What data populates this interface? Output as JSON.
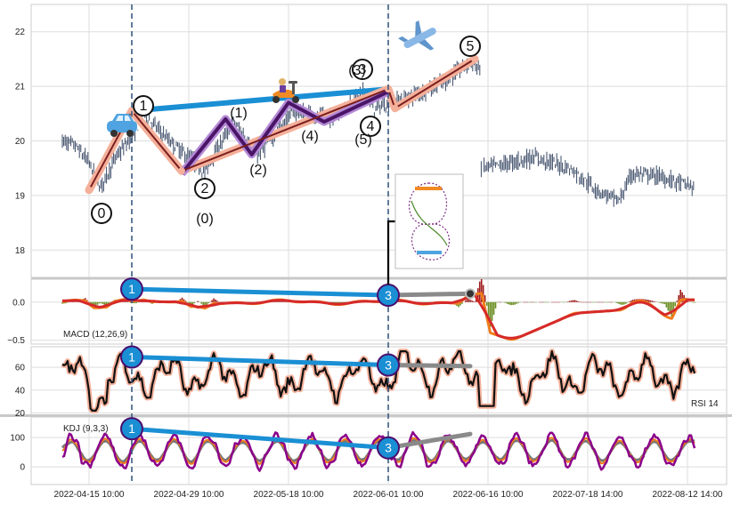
{
  "chart_data": {
    "type": "line",
    "x_tick_labels": [
      "2022-04-15 10:00",
      "2022-04-29 10:00",
      "2022-05-18 10:00",
      "2022-06-01 10:00",
      "2022-06-16 10:00",
      "2022-07-18 14:00",
      "2022-08-12 14:00"
    ],
    "panels": [
      {
        "name": "price",
        "series_type": "candlestick",
        "y_ticks": [
          18,
          19,
          20,
          21,
          22
        ],
        "ylim": [
          17.5,
          22.5
        ],
        "wave_labels": [
          "0",
          "1",
          "2",
          "3",
          "4",
          "5"
        ],
        "sub_wave_labels": [
          "(0)",
          "(1)",
          "(2)",
          "(3)",
          "(4)",
          "(5)"
        ],
        "impulse_path": [
          {
            "label": "0",
            "x": "2022-04-15 10:00",
            "y": 19.1
          },
          {
            "label": "1",
            "x": "2022-04-21 10:00",
            "y": 20.55
          },
          {
            "label": "2",
            "x": "2022-04-28 10:00",
            "y": 19.45
          },
          {
            "label": "3",
            "x": "2022-06-01 10:00",
            "y": 20.95
          },
          {
            "label": "4",
            "x": "2022-06-02 10:00",
            "y": 20.6
          },
          {
            "label": "5",
            "x": "2022-06-14 10:00",
            "y": 21.5
          }
        ],
        "sub_wave_path": [
          {
            "label": "(0)",
            "x": "2022-04-28 10:00",
            "y": 19.4
          },
          {
            "label": "(1)",
            "x": "2022-05-06 10:00",
            "y": 20.4
          },
          {
            "label": "(2)",
            "x": "2022-05-11 10:00",
            "y": 19.75
          },
          {
            "label": "(3)",
            "x": "2022-05-18 10:00",
            "y": 20.7
          },
          {
            "label": "(4)",
            "x": "2022-05-23 10:00",
            "y": 20.35
          },
          {
            "label": "(5)",
            "x": "2022-06-01 10:00",
            "y": 20.9
          }
        ],
        "trend_line": [
          {
            "x": "2022-04-21 10:00",
            "y": 20.55
          },
          {
            "x": "2022-06-01 10:00",
            "y": 20.95
          }
        ],
        "icons": [
          "car-icon",
          "scooter-icon",
          "airplane-icon"
        ]
      },
      {
        "name": "MACD",
        "label": "MACD (12,26,9)",
        "y_ticks": [
          0.0,
          -0.5
        ],
        "y_tick_labels": [
          "0.0",
          "−0.5"
        ],
        "ylim": [
          -0.55,
          0.3
        ],
        "divergence_markers": [
          "1",
          "3"
        ]
      },
      {
        "name": "RSI",
        "label": "RSI 14",
        "y_ticks": [
          20,
          40,
          60
        ],
        "ylim": [
          18,
          78
        ],
        "divergence_markers": [
          "1",
          "3"
        ]
      },
      {
        "name": "KDJ",
        "label": "KDJ (9,3,3)",
        "y_ticks": [
          0,
          100
        ],
        "ylim": [
          -60,
          170
        ],
        "divergence_markers": [
          "1",
          "3"
        ]
      }
    ],
    "vertical_markers": [
      "2022-04-21 10:00",
      "2022-06-01 10:00"
    ],
    "colors": {
      "candle": "#3a4a66",
      "impulse": "#f4b09a",
      "impulse_core": "#7a1e1e",
      "sub_wave": "#4a1566",
      "trend": "#1a8fd4",
      "marker_fill": "#1a8fd4",
      "marker_edge": "#4a0e6e",
      "macd_line": "#f07d1a",
      "signal_line": "#d62a2a",
      "hist_pos": "#9e1b1b",
      "hist_neg": "#6b8e23",
      "rsi_line": "#111111",
      "rsi_glow": "#f4b09a",
      "kdj_k": "#f07d1a",
      "kdj_d": "#777777",
      "kdj_j": "#8b008b",
      "grey_div": "#8a8a8a",
      "vline": "#3a5a80"
    }
  }
}
